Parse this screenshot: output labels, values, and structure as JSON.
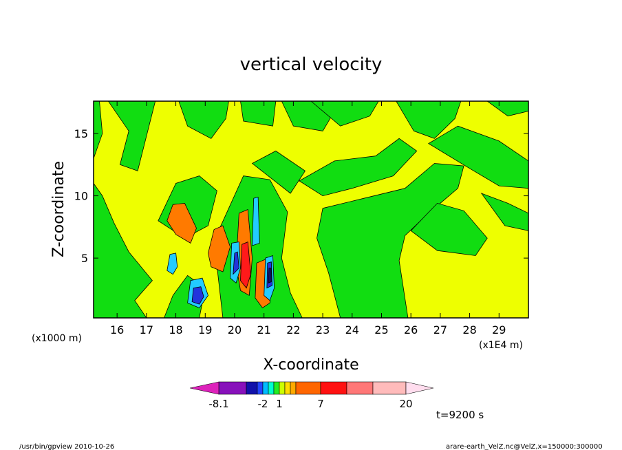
{
  "chart_data": {
    "type": "heatmap",
    "title": "vertical velocity",
    "xlabel": "X-coordinate",
    "ylabel": "Z-coordinate",
    "x_unit_note": "(x1E4 m)",
    "y_unit_note": "(x1000 m)",
    "xlim": [
      15.2,
      30.0
    ],
    "ylim": [
      0.2,
      17.6
    ],
    "x_ticks": [
      16,
      17,
      18,
      19,
      20,
      21,
      22,
      23,
      24,
      25,
      26,
      27,
      28,
      29
    ],
    "y_ticks": [
      5,
      10,
      15
    ],
    "colorbar": {
      "tick_labels": [
        "-8.1",
        "-2",
        "1",
        "7",
        "20"
      ],
      "colors": [
        "#dd22bb",
        "#8811bb",
        "#1111aa",
        "#2244ff",
        "#00bbff",
        "#00ffcc",
        "#22ee22",
        "#ccff00",
        "#ffdd00",
        "#ffaa00",
        "#ff6600",
        "#ff1111",
        "#ff7777",
        "#ffbbbb",
        "#ffddee"
      ]
    },
    "palette": {
      "yellow": "#eeff00",
      "green": "#11dd11",
      "orange": "#ff7a00",
      "red": "#ff1a1a",
      "cyan": "#22ccff",
      "blue": "#2233dd",
      "navy": "#111166"
    }
  },
  "time_label": "t=9200 s",
  "footer": {
    "left": "/usr/bin/gpview   2010-10-26",
    "right": "arare-earth_VelZ.nc@VelZ,x=150000:300000"
  }
}
